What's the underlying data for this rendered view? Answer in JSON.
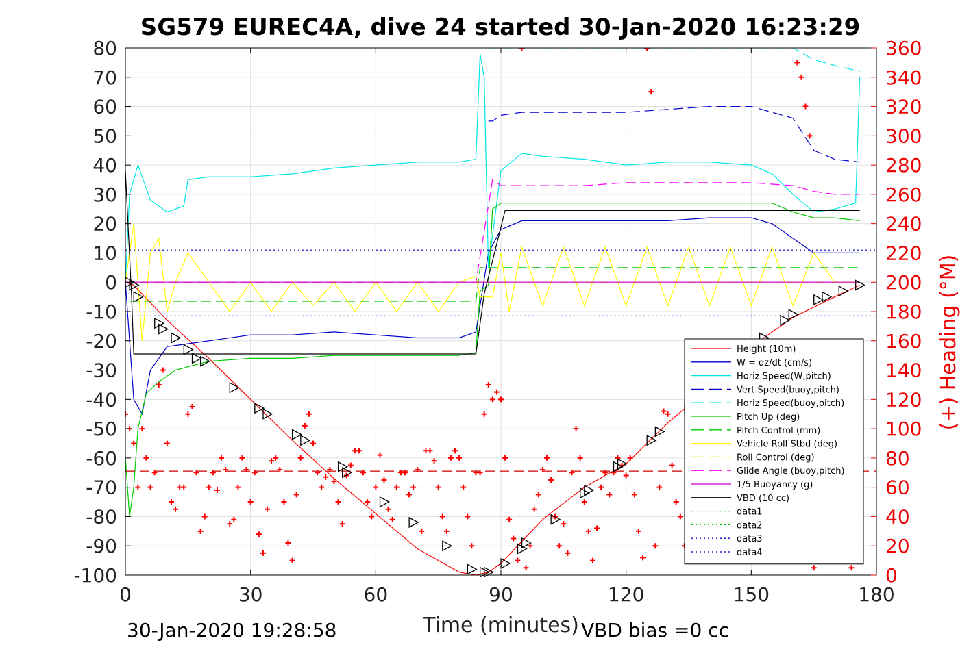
{
  "chart_data": {
    "type": "line",
    "title": "SG579 EUREC4A, dive 24 started 30-Jan-2020 16:23:29",
    "xlabel": "Time (minutes)",
    "ylabel_right": "(+) Heading (°M)",
    "xlim": [
      0,
      180
    ],
    "ylim": [
      -100,
      80
    ],
    "ylim_right": [
      0,
      360
    ],
    "xticks": [
      "0",
      "30",
      "60",
      "90",
      "120",
      "150",
      "180"
    ],
    "yticks": [
      "80",
      "70",
      "60",
      "50",
      "40",
      "30",
      "20",
      "10",
      "0",
      "-10",
      "-20",
      "-30",
      "-40",
      "-50",
      "-60",
      "-70",
      "-80",
      "-90",
      "-100"
    ],
    "yticks_right": [
      "360",
      "340",
      "320",
      "300",
      "280",
      "260",
      "240",
      "220",
      "200",
      "180",
      "160",
      "140",
      "120",
      "100",
      "80",
      "60",
      "40",
      "20",
      "0"
    ],
    "grid": true,
    "legend_position": "lower-right",
    "footer_left": "30-Jan-2020 19:28:58",
    "footer_right": "VBD bias =0 cc",
    "series": [
      {
        "name": "Height (10m)",
        "color": "#ff0000",
        "style": "solid",
        "x": [
          0,
          2,
          10,
          20,
          30,
          40,
          50,
          60,
          70,
          80,
          84,
          87,
          90,
          100,
          110,
          120,
          130,
          140,
          150,
          160,
          170,
          176
        ],
        "y": [
          0,
          -1,
          -13,
          -26,
          -40,
          -54,
          -67,
          -79,
          -91,
          -99,
          -100,
          -99,
          -96,
          -81,
          -70,
          -62,
          -48,
          -36,
          -22,
          -12,
          -5,
          -1
        ]
      },
      {
        "name": "W = dz/dt (cm/s)",
        "color": "#0000cc",
        "style": "solid",
        "x": [
          0,
          2,
          4,
          6,
          10,
          15,
          20,
          30,
          40,
          50,
          60,
          70,
          80,
          84,
          87,
          90,
          95,
          100,
          110,
          120,
          130,
          140,
          150,
          155,
          160,
          165,
          170,
          176
        ],
        "y": [
          0,
          -40,
          -45,
          -30,
          -22,
          -21,
          -20,
          -18,
          -18,
          -17,
          -18,
          -19,
          -19,
          -17,
          10,
          18,
          21,
          21,
          21,
          21,
          21,
          22,
          22,
          20,
          15,
          10,
          10,
          10
        ]
      },
      {
        "name": "Horiz Speed(W,pitch)",
        "color": "#00e5e5",
        "style": "solid",
        "x": [
          0,
          1,
          3,
          4,
          6,
          10,
          14,
          15,
          20,
          30,
          40,
          50,
          60,
          70,
          80,
          84,
          85,
          86,
          87,
          90,
          95,
          100,
          110,
          120,
          130,
          140,
          150,
          155,
          160,
          165,
          170,
          175,
          176
        ],
        "y": [
          0,
          30,
          40,
          36,
          28,
          24,
          26,
          35,
          36,
          36,
          37,
          39,
          40,
          41,
          41,
          42,
          78,
          70,
          5,
          38,
          44,
          43,
          42,
          40,
          41,
          41,
          40,
          37,
          30,
          24,
          25,
          27,
          70
        ]
      },
      {
        "name": "Vert Speed(buoy,pitch)",
        "color": "#0000cc",
        "style": "dashed",
        "x": [
          87,
          88,
          90,
          95,
          100,
          110,
          120,
          130,
          140,
          150,
          155,
          160,
          165,
          170,
          176
        ],
        "y": [
          55,
          55,
          57,
          58,
          58,
          58,
          58,
          59,
          60,
          60,
          58,
          56,
          45,
          42,
          41
        ]
      },
      {
        "name": "Horiz Speed(buoy,pitch)",
        "color": "#00e5e5",
        "style": "dashed",
        "x": [
          87,
          88,
          90,
          100,
          110,
          120,
          130,
          140,
          150,
          160,
          165,
          170,
          176
        ],
        "y": [
          80,
          80,
          80,
          80,
          80,
          80,
          80,
          80,
          80,
          80,
          76,
          74,
          72
        ]
      },
      {
        "name": "Pitch Up (deg)",
        "color": "#00cc00",
        "style": "solid",
        "x": [
          0,
          1,
          2,
          3,
          5,
          8,
          12,
          20,
          30,
          40,
          50,
          60,
          70,
          80,
          84,
          85,
          87,
          88,
          90,
          100,
          110,
          120,
          130,
          140,
          150,
          155,
          160,
          165,
          170,
          176
        ],
        "y": [
          -60,
          -80,
          -70,
          -50,
          -38,
          -34,
          -30,
          -27,
          -26,
          -26,
          -25,
          -25,
          -25,
          -25,
          -24,
          -3,
          -1,
          25,
          27,
          27,
          27,
          27,
          27,
          27,
          27,
          27,
          24,
          22,
          22,
          21
        ]
      },
      {
        "name": "Pitch Control (mm)",
        "color": "#00cc00",
        "style": "dashed",
        "x": [
          1,
          2,
          84,
          85,
          90,
          176
        ],
        "y": [
          -6.5,
          -6.5,
          -6.5,
          5,
          5,
          5
        ]
      },
      {
        "name": "Vehicle Roll Stbd (deg)",
        "color": "#ffff00",
        "style": "solid",
        "x": [
          0,
          2,
          4,
          6,
          8,
          10,
          12,
          15,
          20,
          25,
          30,
          35,
          40,
          45,
          50,
          55,
          60,
          65,
          70,
          75,
          80,
          84,
          85,
          88,
          90,
          92,
          95,
          100,
          105,
          110,
          115,
          120,
          125,
          130,
          135,
          140,
          145,
          150,
          155,
          160,
          165,
          170,
          176
        ],
        "y": [
          0,
          20,
          -20,
          10,
          15,
          -10,
          0,
          10,
          0,
          -10,
          0,
          -10,
          0,
          -8,
          0,
          -10,
          0,
          -10,
          0,
          -10,
          0,
          2,
          -5,
          -5,
          10,
          -10,
          12,
          -8,
          12,
          -8,
          12,
          -8,
          12,
          -8,
          12,
          -8,
          12,
          -8,
          12,
          -8,
          10,
          0,
          0
        ]
      },
      {
        "name": "Roll Control (deg)",
        "color": "#e5e500",
        "style": "dashed",
        "x": [
          0,
          176
        ],
        "y": [
          0,
          0
        ]
      },
      {
        "name": "Glide Angle (buoy,pitch)",
        "color": "#ff00ff",
        "style": "dashed",
        "x": [
          0,
          2,
          84,
          88,
          90,
          100,
          110,
          120,
          130,
          140,
          150,
          160,
          165,
          170,
          176
        ],
        "y": [
          0,
          0,
          0,
          35,
          33,
          33,
          33,
          34,
          34,
          34,
          34,
          33,
          31,
          30,
          30
        ]
      },
      {
        "name": "1/5 Buoyancy (g)",
        "color": "#cc00cc",
        "style": "solid",
        "x": [
          0,
          176
        ],
        "y": [
          0,
          0
        ]
      },
      {
        "name": "VBD (10 cc)",
        "color": "#000000",
        "style": "solid",
        "x": [
          0,
          1.5,
          2,
          84,
          86,
          91,
          176
        ],
        "y": [
          38,
          -5,
          -24.5,
          -24.5,
          -4,
          24.5,
          24.5
        ]
      },
      {
        "name": "data1",
        "color": "#00cc00",
        "style": "dotted",
        "x": [],
        "y": []
      },
      {
        "name": "data2",
        "color": "#00cc00",
        "style": "dotted",
        "x": [],
        "y": []
      },
      {
        "name": "data3",
        "color": "#0000cc",
        "style": "dotted",
        "x": [
          0,
          180
        ],
        "y": [
          11,
          11
        ]
      },
      {
        "name": "data4",
        "color": "#0000cc",
        "style": "dotted",
        "x": [
          0,
          180
        ],
        "y": [
          -11.5,
          -11.5
        ]
      }
    ],
    "extra_lines": [
      {
        "color": "#cc0000",
        "style": "dashed",
        "x": [
          0,
          180
        ],
        "y": [
          -64.5,
          -64.5
        ]
      }
    ],
    "height_markers": {
      "x": [
        1,
        2,
        3,
        8,
        9,
        12,
        15,
        17,
        19,
        26,
        32,
        34,
        41,
        43,
        52,
        53,
        62,
        69,
        77,
        83,
        86,
        87,
        91,
        95,
        96,
        103,
        110,
        111,
        118,
        119,
        126,
        128,
        135,
        136,
        153,
        158,
        160,
        166,
        168,
        172,
        176
      ],
      "y": [
        0,
        -1,
        -5,
        -14,
        -16,
        -19,
        -23,
        -26,
        -27,
        -36,
        -43,
        -45,
        -52,
        -54,
        -63,
        -65,
        -75,
        -82,
        -90,
        -98,
        -99,
        -99,
        -96,
        -91,
        -89,
        -81,
        -72,
        -71,
        -63,
        -62,
        -54,
        -51,
        -43,
        -42,
        -19,
        -13,
        -11,
        -6,
        -5,
        -3,
        -1
      ]
    },
    "heading": {
      "name": "Heading (°M)",
      "color": "#ff0000",
      "x": [
        0,
        1,
        2,
        3,
        4,
        5,
        6,
        7,
        8,
        9,
        10,
        11,
        12,
        13,
        14,
        15,
        16,
        17,
        18,
        19,
        20,
        21,
        22,
        23,
        24,
        25,
        26,
        27,
        28,
        29,
        30,
        31,
        32,
        33,
        34,
        35,
        36,
        37,
        38,
        39,
        40,
        41,
        42,
        43,
        44,
        45,
        46,
        47,
        48,
        49,
        50,
        51,
        52,
        53,
        54,
        55,
        56,
        57,
        58,
        59,
        60,
        61,
        62,
        63,
        64,
        65,
        66,
        67,
        68,
        69,
        70,
        71,
        72,
        73,
        74,
        75,
        76,
        77,
        78,
        79,
        80,
        81,
        82,
        83,
        84,
        85,
        86,
        87,
        88,
        89,
        90,
        91,
        92,
        93,
        94,
        95,
        96,
        97,
        98,
        99,
        100,
        101,
        102,
        103,
        104,
        105,
        106,
        107,
        108,
        109,
        110,
        111,
        112,
        113,
        114,
        115,
        116,
        117,
        118,
        119,
        120,
        121,
        122,
        123,
        124,
        125,
        126,
        127,
        128,
        129,
        130,
        131,
        132,
        133,
        134,
        135,
        136,
        137,
        138,
        139,
        140,
        141,
        142,
        143,
        144,
        145,
        146,
        147,
        148,
        149,
        150,
        151,
        152,
        153,
        154,
        155,
        156,
        157,
        158,
        159,
        160,
        161,
        162,
        163,
        164,
        165,
        166,
        167,
        168,
        169,
        170,
        171,
        172,
        173,
        174,
        175,
        176
      ],
      "y": [
        110,
        100,
        90,
        60,
        100,
        80,
        60,
        70,
        130,
        140,
        90,
        50,
        45,
        60,
        60,
        110,
        115,
        70,
        30,
        40,
        60,
        70,
        58,
        80,
        72,
        35,
        38,
        60,
        80,
        72,
        50,
        70,
        28,
        15,
        45,
        78,
        80,
        72,
        50,
        22,
        10,
        55,
        80,
        102,
        110,
        90,
        70,
        60,
        67,
        72,
        64,
        50,
        35,
        68,
        75,
        85,
        85,
        70,
        50,
        40,
        60,
        82,
        65,
        45,
        38,
        60,
        70,
        70,
        55,
        60,
        72,
        30,
        85,
        85,
        78,
        60,
        40,
        30,
        80,
        85,
        80,
        60,
        40,
        20,
        70,
        70,
        110,
        130,
        120,
        125,
        120,
        80,
        38,
        25,
        10,
        360,
        5,
        20,
        45,
        55,
        72,
        80,
        65,
        40,
        20,
        35,
        15,
        70,
        100,
        80,
        50,
        30,
        10,
        32,
        60,
        70,
        55,
        70,
        80,
        75,
        68,
        80,
        55,
        30,
        12,
        360,
        330,
        20,
        60,
        112,
        110,
        75,
        50,
        40,
        20,
        12,
        15,
        40,
        60,
        90,
        80,
        80,
        60,
        40,
        20,
        15,
        10,
        35,
        60,
        65,
        50,
        70,
        72,
        50,
        40,
        70,
        60,
        80,
        80,
        40,
        20,
        350,
        340,
        320,
        300,
        5,
        10,
        20,
        50,
        60,
        30,
        20,
        30,
        10,
        5,
        20,
        40
      ]
    }
  }
}
